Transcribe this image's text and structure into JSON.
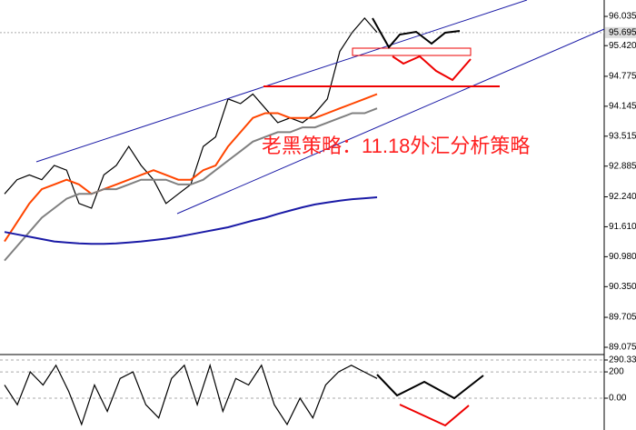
{
  "chart_data": [
    {
      "type": "line",
      "annotation": "老黑策略：11.18外汇分析策略",
      "last_price": 95.695,
      "ylim": [
        88.96,
        96.38
      ],
      "yticks": [
        96.035,
        {
          "value": 95.42,
          "label": "95.420"
        },
        94.775,
        94.145,
        93.515,
        92.885,
        {
          "value": 92.24,
          "label": "92.240"
        },
        {
          "value": 91.61,
          "label": "91.610"
        },
        {
          "value": 90.98,
          "label": "90.980"
        },
        {
          "value": 90.35,
          "label": "90.350"
        },
        89.705,
        89.075
      ],
      "series": [
        {
          "color": "#000000",
          "values": [
            92.3,
            92.6,
            92.7,
            92.6,
            92.9,
            92.8,
            92.1,
            92.0,
            92.7,
            92.9,
            93.3,
            92.9,
            92.6,
            92.1,
            92.3,
            92.5,
            93.3,
            93.5,
            94.3,
            94.2,
            94.4,
            94.1,
            93.8,
            93.9,
            93.8,
            94.0,
            94.3,
            95.3,
            95.7,
            96.0,
            95.7
          ]
        },
        {
          "color": "#ff4500",
          "values": [
            91.3,
            91.7,
            92.1,
            92.4,
            92.5,
            92.6,
            92.5,
            92.3,
            92.4,
            92.5,
            92.6,
            92.7,
            92.8,
            92.7,
            92.6,
            92.6,
            92.8,
            92.9,
            93.3,
            93.6,
            93.9,
            94.0,
            94.0,
            93.9,
            93.9,
            93.9,
            94.0,
            94.1,
            94.2,
            94.3,
            94.4
          ]
        },
        {
          "color": "#808080",
          "values": [
            90.9,
            91.2,
            91.5,
            91.8,
            92.0,
            92.2,
            92.3,
            92.3,
            92.4,
            92.4,
            92.5,
            92.6,
            92.6,
            92.6,
            92.5,
            92.5,
            92.6,
            92.8,
            93.0,
            93.2,
            93.4,
            93.5,
            93.6,
            93.6,
            93.7,
            93.7,
            93.8,
            93.9,
            94.0,
            94.0,
            94.1
          ]
        },
        {
          "color": "#1a1aa6",
          "values": [
            91.5,
            91.45,
            91.4,
            91.35,
            91.3,
            91.28,
            91.26,
            91.25,
            91.25,
            91.26,
            91.28,
            91.3,
            91.33,
            91.36,
            91.4,
            91.45,
            91.5,
            91.55,
            91.6,
            91.67,
            91.74,
            91.8,
            91.88,
            91.95,
            92.02,
            92.08,
            92.12,
            92.16,
            92.19,
            92.21,
            92.23
          ]
        }
      ]
    },
    {
      "type": "line",
      "ylim": [
        -242,
        318
      ],
      "yticks": [
        290.334,
        200,
        {
          "value": 0,
          "label": "0.00"
        }
      ],
      "series": [
        {
          "color": "#000000",
          "values": [
            100,
            -50,
            200,
            100,
            250,
            50,
            -200,
            100,
            -100,
            150,
            200,
            -50,
            -150,
            150,
            250,
            -50,
            250,
            -100,
            150,
            100,
            250,
            -50,
            -200,
            0,
            -150,
            100,
            200,
            250,
            200,
            150
          ]
        }
      ]
    }
  ]
}
